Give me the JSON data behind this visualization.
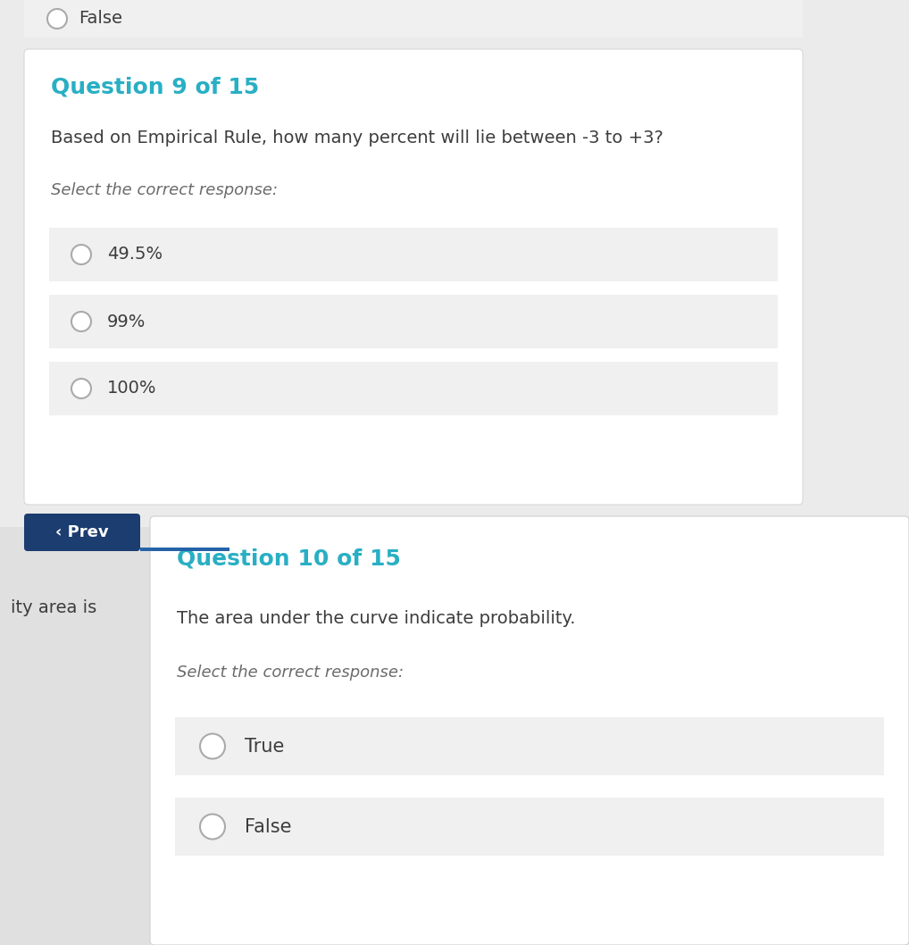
{
  "bg_color": "#ebebeb",
  "white": "#ffffff",
  "teal": "#29afc4",
  "dark_text": "#3d3d3d",
  "gray_text": "#6b6b6b",
  "option_bg": "#f0f0f0",
  "radio_border": "#aaaaaa",
  "navy": "#1b3d6f",
  "prev_text": "#ffffff",
  "q9_header": "Question 9 of 15",
  "q9_question": "Based on Empirical Rule, how many percent will lie between -3 to +3?",
  "q9_select": "Select the correct response:",
  "q9_options": [
    "49.5%",
    "99%",
    "100%"
  ],
  "prev_label": "‹ Prev",
  "q10_header": "Question 10 of 15",
  "q10_question": "The area under the curve indicate probability.",
  "q10_select": "Select the correct response:",
  "q10_options": [
    "True",
    "False"
  ],
  "left_partial_text": "ity area is",
  "top_radio_text": "False",
  "top_option_bg": "#f0f0f0",
  "card9_shadow": "#d0d0d0",
  "card10_shadow": "#d0d0d0"
}
